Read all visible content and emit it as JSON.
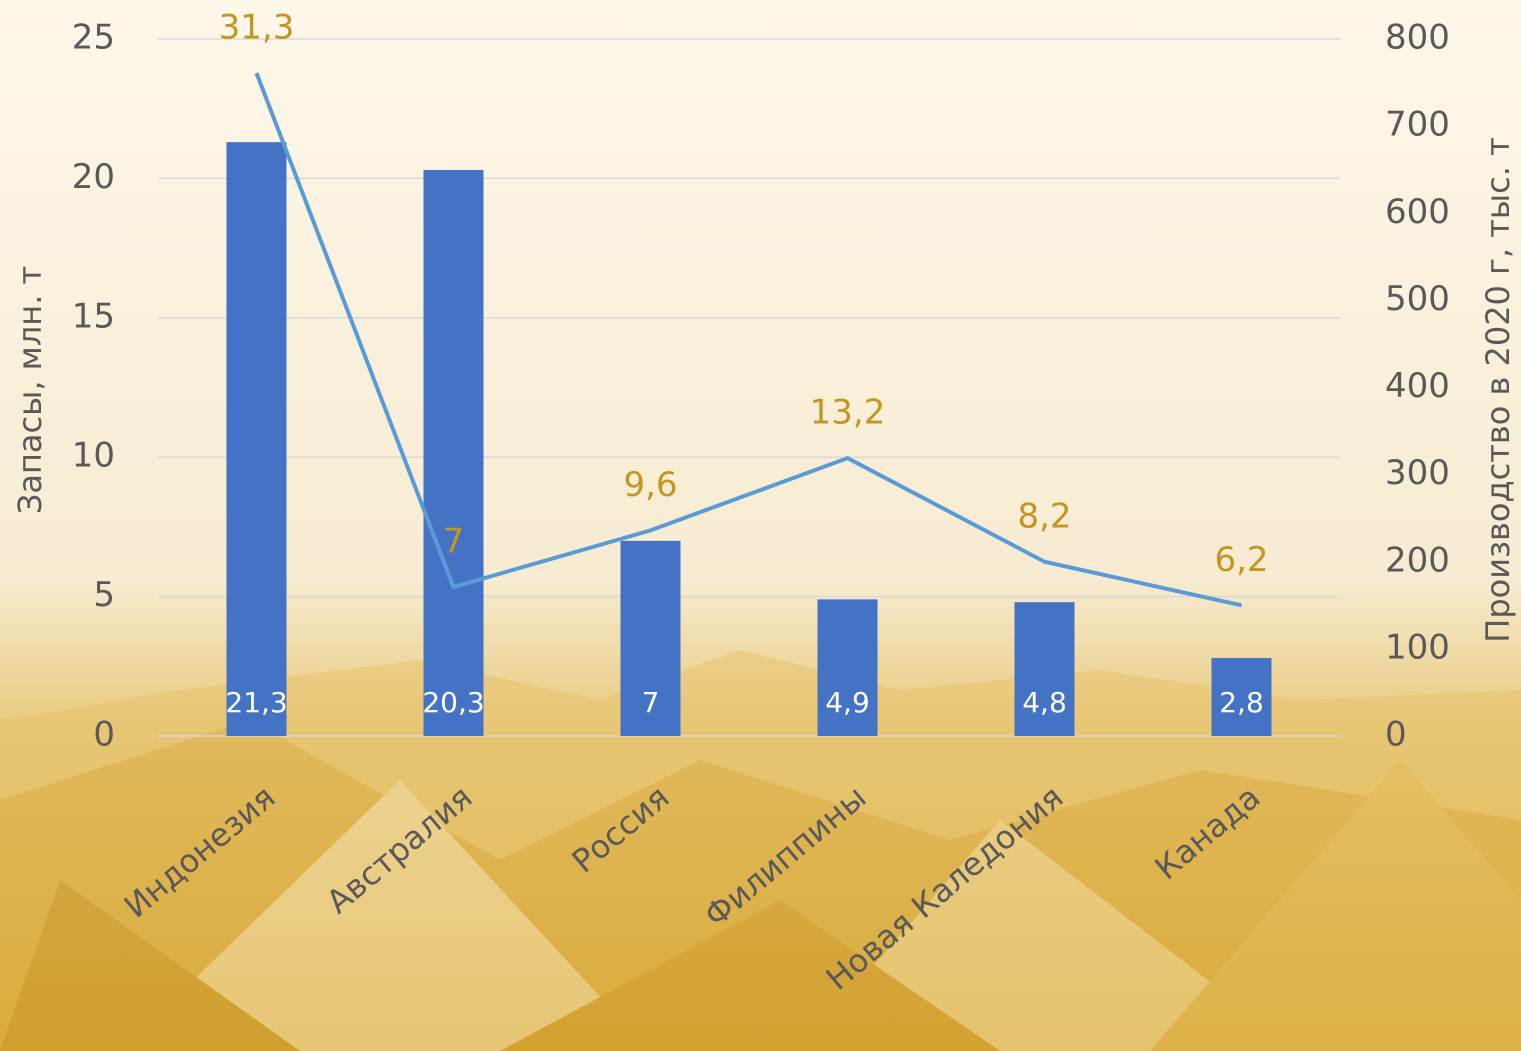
{
  "chart_data": {
    "type": "bar-line",
    "y_label": "Запасы, млн. т",
    "y2_label": "Производство в 2020 г, тыс. т",
    "categories": [
      "Индонезия",
      "Австралия",
      "Россия",
      "Филиппины",
      "Новая Каледония",
      "Канада"
    ],
    "ylim": [
      0,
      25
    ],
    "yticks": [
      0,
      5,
      10,
      15,
      20,
      25
    ],
    "y2lim": [
      0,
      800
    ],
    "y2ticks": [
      0,
      100,
      200,
      300,
      400,
      500,
      600,
      700,
      800
    ],
    "grid": true,
    "series": [
      {
        "type": "bar",
        "color": "#4472c4",
        "values": [
          21.3,
          20.3,
          7,
          4.9,
          4.8,
          2.8
        ],
        "value_labels": [
          "21,3",
          "20,3",
          "7",
          "4,9",
          "4,8",
          "2,8"
        ]
      },
      {
        "type": "line",
        "axis": "y2",
        "color": "#5b9bd5",
        "values": [
          761,
          171,
          236,
          319,
          200,
          150
        ],
        "annotations": [
          "31,3",
          "7",
          "9,6",
          "13,2",
          "8,2",
          "6,2"
        ]
      }
    ]
  }
}
